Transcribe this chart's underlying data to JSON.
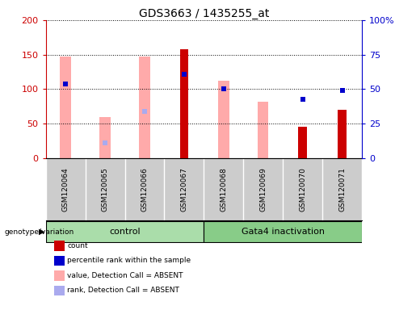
{
  "title": "GDS3663 / 1435255_at",
  "samples": [
    "GSM120064",
    "GSM120065",
    "GSM120066",
    "GSM120067",
    "GSM120068",
    "GSM120069",
    "GSM120070",
    "GSM120071"
  ],
  "group_labels": [
    "control",
    "Gata4 inactivation"
  ],
  "absent_value_bars": [
    147,
    60,
    147,
    0,
    112,
    82,
    0,
    0
  ],
  "absent_rank_markers": [
    108,
    22,
    68,
    122,
    100,
    0,
    0,
    0
  ],
  "count_bars": [
    0,
    0,
    0,
    158,
    0,
    0,
    46,
    70
  ],
  "percentile_rank_markers": [
    108,
    0,
    0,
    122,
    100,
    0,
    85,
    98
  ],
  "left_ylim": [
    0,
    200
  ],
  "right_ylim": [
    0,
    100
  ],
  "left_yticks": [
    0,
    50,
    100,
    150,
    200
  ],
  "right_yticks": [
    0,
    25,
    50,
    75,
    100
  ],
  "right_yticklabels": [
    "0",
    "25",
    "50",
    "75",
    "100%"
  ],
  "left_color": "#cc0000",
  "right_color": "#0000cc",
  "absent_value_color": "#ffaaaa",
  "absent_rank_color": "#aaaaee",
  "count_color": "#cc0000",
  "percentile_color": "#0000cc",
  "bg_color": "#ffffff",
  "label_area_color": "#cccccc",
  "group_color_control": "#aaddaa",
  "group_color_gata4": "#88cc88",
  "legend_items": [
    "count",
    "percentile rank within the sample",
    "value, Detection Call = ABSENT",
    "rank, Detection Call = ABSENT"
  ],
  "legend_colors": [
    "#cc0000",
    "#0000cc",
    "#ffaaaa",
    "#aaaaee"
  ],
  "bar_width": 0.25
}
